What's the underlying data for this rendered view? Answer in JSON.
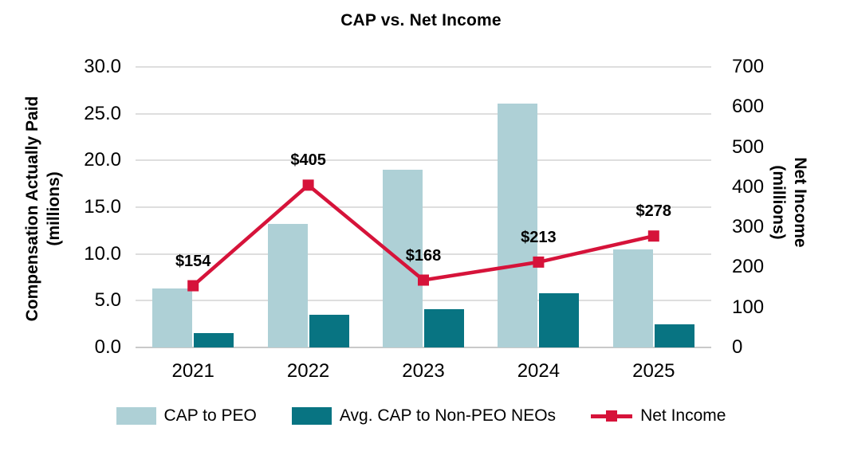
{
  "chart_data": {
    "type": "combo-bar-line",
    "title": "CAP vs. Net Income",
    "categories": [
      "2021",
      "2022",
      "2023",
      "2024",
      "2025"
    ],
    "bar_series": [
      {
        "name": "CAP to PEO",
        "axis": "left",
        "color": "#aed0d6",
        "values": [
          6.3,
          13.2,
          19.0,
          26.1,
          10.5
        ]
      },
      {
        "name": "Avg. CAP to Non-PEO NEOs",
        "axis": "left",
        "color": "#087482",
        "values": [
          1.5,
          3.5,
          4.1,
          5.8,
          2.5
        ]
      }
    ],
    "line_series": {
      "name": "Net Income",
      "axis": "right",
      "color": "#d6133a",
      "values": [
        154,
        405,
        168,
        213,
        278
      ],
      "point_labels": [
        "$154",
        "$405",
        "$168",
        "$213",
        "$278"
      ]
    },
    "left_axis": {
      "title_line1": "Compensation Actually Paid",
      "title_line2": "(millions)",
      "min": 0,
      "max": 30,
      "tick_labels": [
        "30.0",
        "25.0",
        "20.0",
        "15.0",
        "10.0",
        "5.0",
        "0.0"
      ],
      "tick_values": [
        30,
        25,
        20,
        15,
        10,
        5,
        0
      ]
    },
    "right_axis": {
      "title_line1": "Net Income",
      "title_line2": "(millions)",
      "min": 0,
      "max": 700,
      "tick_labels": [
        "700",
        "600",
        "500",
        "400",
        "300",
        "200",
        "100",
        "0"
      ],
      "tick_values": [
        700,
        600,
        500,
        400,
        300,
        200,
        100,
        0
      ]
    },
    "grid": true,
    "legend_position": "bottom",
    "colors": {
      "gridline": "#dedede",
      "axis_line": "#c9c9c9",
      "text": "#000000",
      "background": "#ffffff"
    }
  }
}
